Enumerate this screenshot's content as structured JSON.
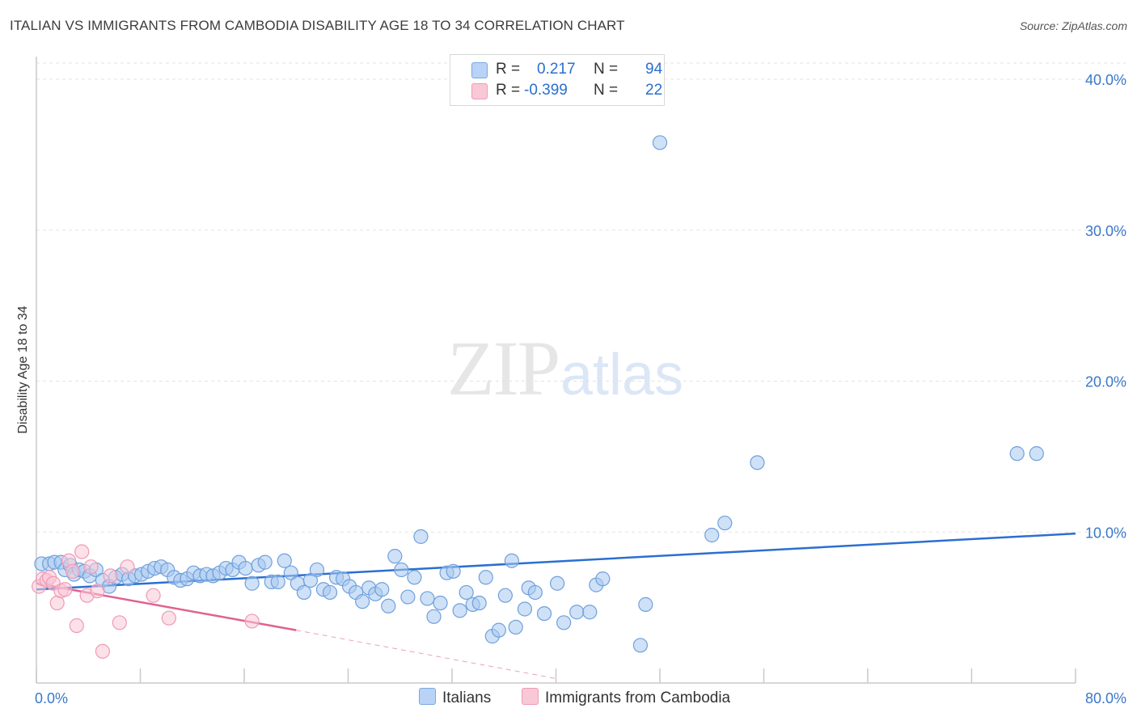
{
  "header": {
    "title": "ITALIAN VS IMMIGRANTS FROM CAMBODIA DISABILITY AGE 18 TO 34 CORRELATION CHART",
    "source": "Source: ZipAtlas.com"
  },
  "watermark": {
    "zip": "ZIP",
    "atlas": "atlas"
  },
  "legend": {
    "rows": [
      {
        "r_label": "R = ",
        "r_value": "0.217",
        "n_label": "N = ",
        "n_value": "94",
        "color": "#b8d3f5"
      },
      {
        "r_label": "R = ",
        "r_value": "-0.399",
        "n_label": "N = ",
        "n_value": "22",
        "color": "#f9c8d7"
      }
    ]
  },
  "bottom_legend": {
    "italians": "Italians",
    "cambodia": "Immigrants from Cambodia"
  },
  "chart_data": {
    "type": "scatter",
    "xlabel": "",
    "ylabel": "Disability Age 18 to 34",
    "xlim": [
      0,
      80
    ],
    "ylim": [
      0,
      41.5
    ],
    "y_ticks": [
      10,
      20,
      30,
      40
    ],
    "y_tick_labels": [
      "10.0%",
      "20.0%",
      "30.0%",
      "40.0%"
    ],
    "x_tick_labels": [
      "0.0%",
      "80.0%"
    ],
    "grid": true,
    "legend_placement": "top-center",
    "series": [
      {
        "name": "Italians",
        "color": "#a7c8f0",
        "stroke": "#6fa0dc",
        "trend": {
          "x": [
            0,
            80
          ],
          "y": [
            6.2,
            9.9
          ],
          "color": "#2b6fd0"
        },
        "points": [
          [
            0.4,
            7.9
          ],
          [
            1.0,
            7.9
          ],
          [
            1.4,
            8.0
          ],
          [
            1.9,
            8.0
          ],
          [
            2.2,
            7.5
          ],
          [
            2.6,
            7.8
          ],
          [
            2.9,
            7.2
          ],
          [
            3.3,
            7.5
          ],
          [
            3.7,
            7.4
          ],
          [
            4.1,
            7.1
          ],
          [
            4.6,
            7.5
          ],
          [
            5.1,
            6.8
          ],
          [
            5.6,
            6.4
          ],
          [
            6.1,
            7.0
          ],
          [
            6.6,
            7.2
          ],
          [
            7.1,
            6.9
          ],
          [
            7.6,
            7.1
          ],
          [
            8.1,
            7.2
          ],
          [
            8.6,
            7.4
          ],
          [
            9.1,
            7.6
          ],
          [
            9.6,
            7.7
          ],
          [
            10.1,
            7.5
          ],
          [
            10.6,
            7.0
          ],
          [
            11.1,
            6.8
          ],
          [
            11.6,
            6.9
          ],
          [
            12.1,
            7.3
          ],
          [
            12.6,
            7.1
          ],
          [
            13.1,
            7.2
          ],
          [
            13.6,
            7.1
          ],
          [
            14.1,
            7.3
          ],
          [
            14.6,
            7.6
          ],
          [
            15.1,
            7.5
          ],
          [
            15.6,
            8.0
          ],
          [
            16.1,
            7.6
          ],
          [
            16.6,
            6.6
          ],
          [
            17.1,
            7.8
          ],
          [
            17.6,
            8.0
          ],
          [
            18.1,
            6.7
          ],
          [
            18.6,
            6.7
          ],
          [
            19.1,
            8.1
          ],
          [
            19.6,
            7.3
          ],
          [
            20.1,
            6.6
          ],
          [
            20.6,
            6.0
          ],
          [
            21.1,
            6.8
          ],
          [
            21.6,
            7.5
          ],
          [
            22.1,
            6.2
          ],
          [
            22.6,
            6.0
          ],
          [
            23.1,
            7.0
          ],
          [
            23.6,
            6.9
          ],
          [
            24.1,
            6.4
          ],
          [
            24.6,
            6.0
          ],
          [
            25.1,
            5.4
          ],
          [
            25.6,
            6.3
          ],
          [
            26.1,
            5.9
          ],
          [
            26.6,
            6.2
          ],
          [
            27.1,
            5.1
          ],
          [
            27.6,
            8.4
          ],
          [
            28.1,
            7.5
          ],
          [
            28.6,
            5.7
          ],
          [
            29.1,
            7.0
          ],
          [
            29.6,
            9.7
          ],
          [
            30.1,
            5.6
          ],
          [
            30.6,
            4.4
          ],
          [
            31.1,
            5.3
          ],
          [
            31.6,
            7.3
          ],
          [
            32.1,
            7.4
          ],
          [
            32.6,
            4.8
          ],
          [
            33.1,
            6.0
          ],
          [
            33.6,
            5.2
          ],
          [
            34.1,
            5.3
          ],
          [
            34.6,
            7.0
          ],
          [
            35.1,
            3.1
          ],
          [
            35.6,
            3.5
          ],
          [
            36.1,
            5.8
          ],
          [
            36.6,
            8.1
          ],
          [
            36.9,
            3.7
          ],
          [
            37.6,
            4.9
          ],
          [
            37.9,
            6.3
          ],
          [
            38.4,
            6.0
          ],
          [
            39.1,
            4.6
          ],
          [
            40.1,
            6.6
          ],
          [
            40.6,
            4.0
          ],
          [
            41.6,
            4.7
          ],
          [
            42.6,
            4.7
          ],
          [
            43.1,
            6.5
          ],
          [
            43.6,
            6.9
          ],
          [
            46.5,
            2.5
          ],
          [
            46.9,
            5.2
          ],
          [
            48.0,
            35.8
          ],
          [
            52.0,
            9.8
          ],
          [
            53.0,
            10.6
          ],
          [
            55.5,
            14.6
          ],
          [
            75.5,
            15.2
          ],
          [
            77.0,
            15.2
          ]
        ]
      },
      {
        "name": "Immigrants from Cambodia",
        "color": "#f9c8d7",
        "stroke": "#ef9ab5",
        "trend": {
          "x": [
            0,
            20
          ],
          "y": [
            6.6,
            3.5
          ],
          "color": "#e0628f"
        },
        "trend_extension": {
          "x": [
            20,
            40
          ],
          "y": [
            3.5,
            0.3
          ]
        },
        "points": [
          [
            0.2,
            6.4
          ],
          [
            0.5,
            6.9
          ],
          [
            0.8,
            6.8
          ],
          [
            1.0,
            7.0
          ],
          [
            1.3,
            6.6
          ],
          [
            1.6,
            5.3
          ],
          [
            1.9,
            6.1
          ],
          [
            2.2,
            6.2
          ],
          [
            2.5,
            8.1
          ],
          [
            2.8,
            7.4
          ],
          [
            3.1,
            3.8
          ],
          [
            3.5,
            8.7
          ],
          [
            3.9,
            5.8
          ],
          [
            4.2,
            7.7
          ],
          [
            4.7,
            6.1
          ],
          [
            5.1,
            2.1
          ],
          [
            5.7,
            7.1
          ],
          [
            6.4,
            4.0
          ],
          [
            7.0,
            7.7
          ],
          [
            9.0,
            5.8
          ],
          [
            10.2,
            4.3
          ],
          [
            16.6,
            4.1
          ]
        ]
      }
    ]
  }
}
